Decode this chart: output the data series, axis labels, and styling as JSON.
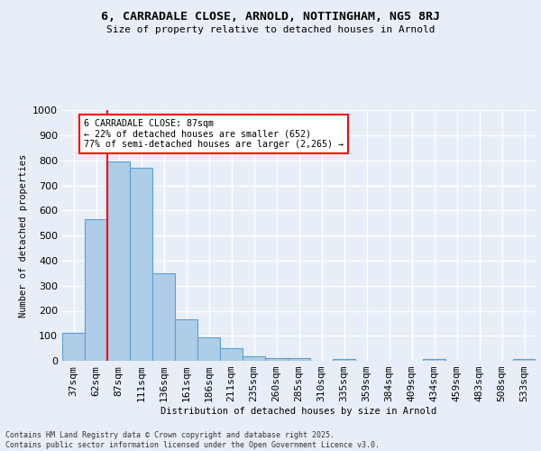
{
  "title1": "6, CARRADALE CLOSE, ARNOLD, NOTTINGHAM, NG5 8RJ",
  "title2": "Size of property relative to detached houses in Arnold",
  "xlabel": "Distribution of detached houses by size in Arnold",
  "ylabel": "Number of detached properties",
  "bar_labels": [
    "37sqm",
    "62sqm",
    "87sqm",
    "111sqm",
    "136sqm",
    "161sqm",
    "186sqm",
    "211sqm",
    "235sqm",
    "260sqm",
    "285sqm",
    "310sqm",
    "335sqm",
    "359sqm",
    "384sqm",
    "409sqm",
    "434sqm",
    "459sqm",
    "483sqm",
    "508sqm",
    "533sqm"
  ],
  "bar_values": [
    110,
    565,
    795,
    770,
    350,
    165,
    95,
    52,
    18,
    12,
    12,
    0,
    8,
    0,
    0,
    0,
    8,
    0,
    0,
    0,
    8
  ],
  "bar_color": "#aecde8",
  "bar_edge_color": "#5a9fd4",
  "red_line_index": 2,
  "annotation_text": "6 CARRADALE CLOSE: 87sqm\n← 22% of detached houses are smaller (652)\n77% of semi-detached houses are larger (2,265) →",
  "annotation_box_color": "white",
  "annotation_box_edge_color": "red",
  "ylim": [
    0,
    1000
  ],
  "yticks": [
    0,
    100,
    200,
    300,
    400,
    500,
    600,
    700,
    800,
    900,
    1000
  ],
  "background_color": "#e8eef8",
  "grid_color": "white",
  "footer": "Contains HM Land Registry data © Crown copyright and database right 2025.\nContains public sector information licensed under the Open Government Licence v3.0."
}
